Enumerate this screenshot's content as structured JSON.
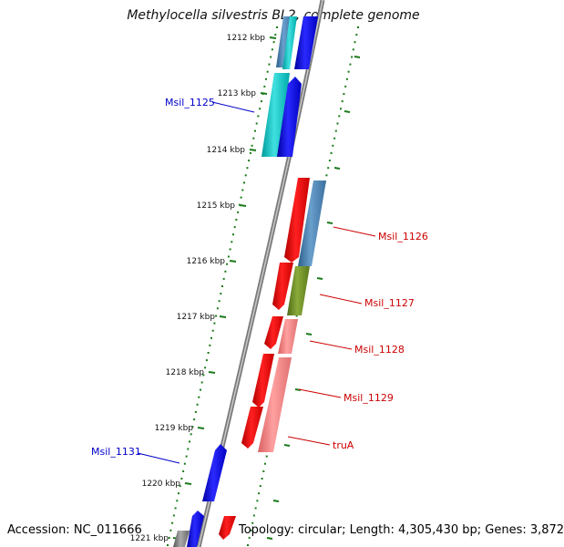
{
  "title": "Methylocella silvestris BL2, complete genome",
  "footer": {
    "accession": "Accession: NC_011666",
    "topology": "Topology: circular; Length: 4,305,430 bp; Genes: 3,872"
  },
  "ticks": [
    "1212 kbp",
    "1213 kbp",
    "1214 kbp",
    "1215 kbp",
    "1216 kbp",
    "1217 kbp",
    "1218 kbp",
    "1219 kbp",
    "1220 kbp",
    "1221 kbp"
  ],
  "gene_labels": [
    {
      "name": "Msil_1125",
      "color": "#0000c8"
    },
    {
      "name": "Msil_1126",
      "color": "#cc0000"
    },
    {
      "name": "Msil_1127",
      "color": "#cc0000"
    },
    {
      "name": "Msil_1128",
      "color": "#cc0000"
    },
    {
      "name": "Msil_1129",
      "color": "#cc0000"
    },
    {
      "name": "truA",
      "color": "#cc0000"
    },
    {
      "name": "Msil_1131",
      "color": "#0000c8"
    }
  ],
  "colors": {
    "forward": "#0000ff",
    "reverse": "#ff0000",
    "cyan": "#00c8c8",
    "steelblue": "#4682b4",
    "olive": "#6b8e23",
    "pink": "#f08080",
    "backbone": "#888888",
    "dots": "#1a7a1a"
  }
}
